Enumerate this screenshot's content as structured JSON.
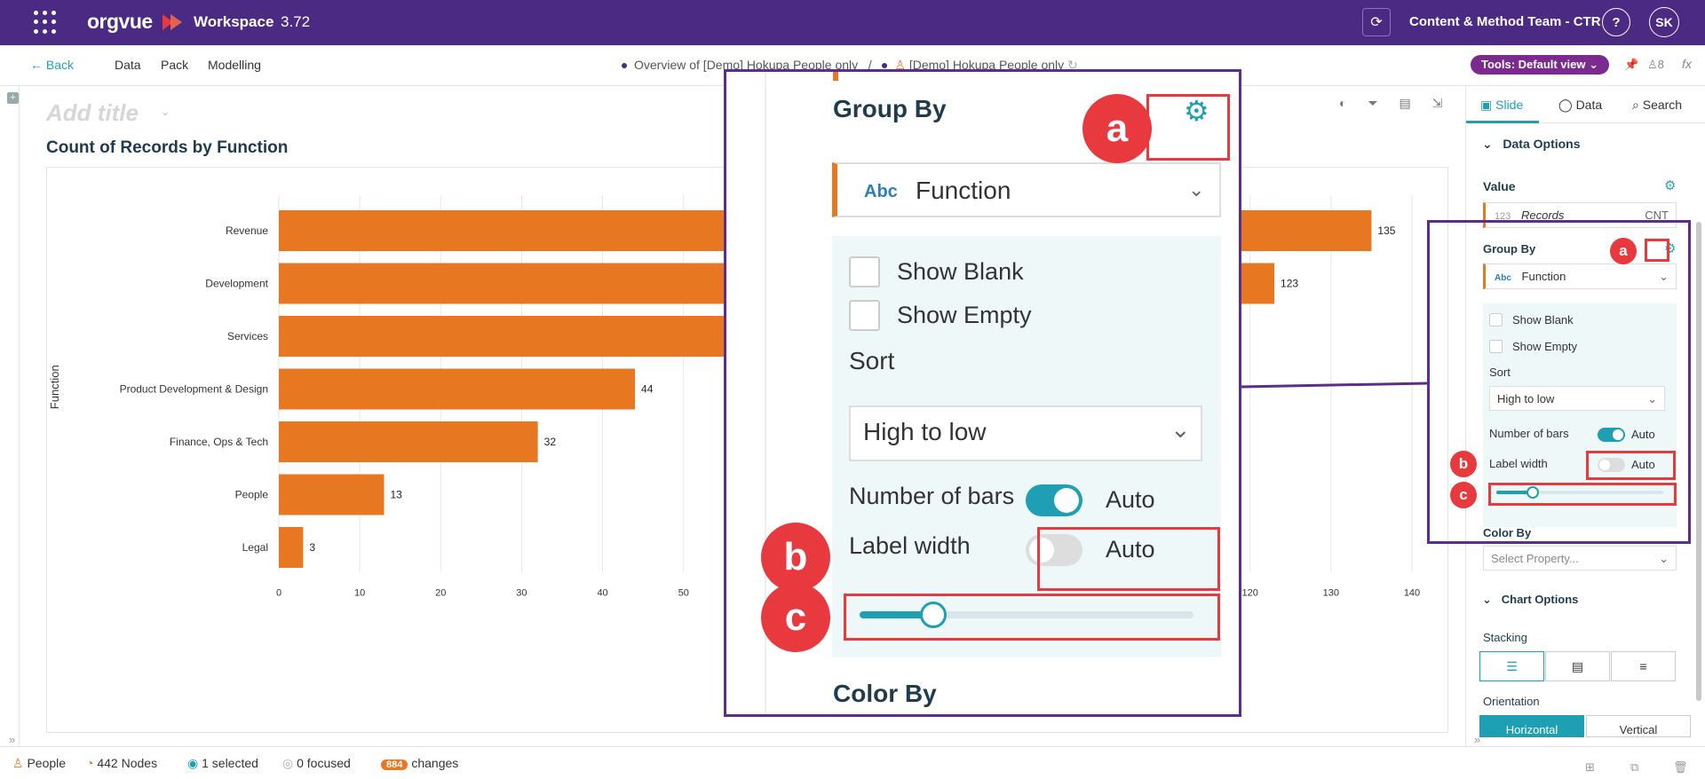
{
  "topbar": {
    "logo": "orgvue",
    "workspace_label": "Workspace",
    "version": "3.72",
    "team": "Content & Method Team - CTR",
    "help": "?",
    "avatar": "SK"
  },
  "navbar": {
    "back": "Back",
    "links": [
      "Data",
      "Pack",
      "Modelling"
    ],
    "crumb_1": "Overview of [Demo] Hokupa People only",
    "crumb_sep": "/",
    "crumb_2": "[Demo] Hokupa People only",
    "tools": "Tools: Default view",
    "users_count": "8",
    "fx": "fx"
  },
  "slide": {
    "add_title_placeholder": "Add title",
    "chart_title": "Count of Records by Function"
  },
  "chart_data": {
    "type": "bar",
    "orientation": "horizontal",
    "title": "Count of Records by Function",
    "ylabel": "Function",
    "xlabel": "",
    "categories": [
      "Revenue",
      "Development",
      "Services",
      "Product Development & Design",
      "Finance, Ops & Tech",
      "People",
      "Legal"
    ],
    "values": [
      135,
      123,
      null,
      44,
      32,
      13,
      3
    ],
    "xlim": [
      0,
      140
    ],
    "x_ticks": [
      0,
      10,
      20,
      30,
      40,
      50,
      120,
      130,
      140
    ],
    "bar_color": "#e87722",
    "grid": true
  },
  "right_panel": {
    "tabs": [
      "Slide",
      "Data",
      "Search"
    ],
    "data_options": "Data Options",
    "value_label": "Value",
    "value_type": "123",
    "value_field": "Records",
    "value_agg": "CNT",
    "group_by_label": "Group By",
    "group_by_type": "Abc",
    "group_by_value": "Function",
    "show_blank": "Show Blank",
    "show_empty": "Show Empty",
    "sort_label": "Sort",
    "sort_value": "High to low",
    "number_of_bars": "Number of bars",
    "number_of_bars_toggle": "Auto",
    "label_width": "Label width",
    "label_width_toggle": "Auto",
    "label_width_slider": 0.22,
    "color_by_label": "Color By",
    "color_by_placeholder": "Select Property...",
    "chart_options": "Chart Options",
    "stacking_label": "Stacking",
    "orientation_label": "Orientation",
    "orientation_options": [
      "Horizontal",
      "Vertical"
    ]
  },
  "annotations": {
    "a": "a",
    "b": "b",
    "c": "c",
    "highlight_color": "#e8393f",
    "callout_color": "#5b2e8c"
  },
  "statusbar": {
    "entity": "People",
    "nodes": "442 Nodes",
    "selected": "1 selected",
    "focused": "0 focused",
    "changes_count": "884",
    "changes_label": "changes"
  },
  "colors": {
    "brand_purple": "#4a2a82",
    "accent_teal": "#1e9fb3",
    "bar_orange": "#e87722"
  }
}
